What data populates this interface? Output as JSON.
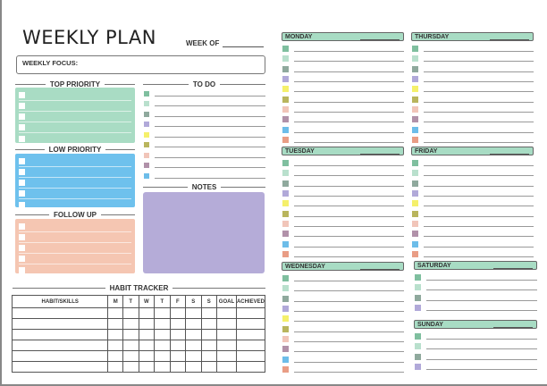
{
  "title": "WEEKLY PLAN",
  "week_of_label": "WEEK OF",
  "weekly_focus_label": "WEEKLY FOCUS:",
  "sections": {
    "top_priority": "TOP PRIORITY",
    "low_priority": "LOW PRIORITY",
    "follow_up": "FOLLOW UP",
    "to_do": "TO DO",
    "notes": "NOTES",
    "habit_tracker": "HABIT TRACKER"
  },
  "colors": {
    "top_priority": "#a9dcc4",
    "low_priority": "#6ec1ed",
    "follow_up": "#f5c6b2",
    "notes": "#b5acd8",
    "day_header": "#a8dcc4"
  },
  "square_colors": [
    "#7fbf9f",
    "#b9e0cd",
    "#8fa99d",
    "#b1a9d9",
    "#f5f06b",
    "#b9b55d",
    "#f1c5b9",
    "#b191a9",
    "#6dbde9",
    "#e99d85"
  ],
  "habit_table": {
    "headers": [
      "HABIT/SKILLS",
      "M",
      "T",
      "W",
      "T",
      "F",
      "S",
      "S",
      "GOAL",
      "ACHIEVED"
    ],
    "rows": 6
  },
  "days": [
    {
      "name": "MONDAY",
      "rows": 10
    },
    {
      "name": "TUESDAY",
      "rows": 10
    },
    {
      "name": "WEDNESDAY",
      "rows": 10
    },
    {
      "name": "THURSDAY",
      "rows": 10
    },
    {
      "name": "FRIDAY",
      "rows": 10
    },
    {
      "name": "SATURDAY",
      "rows": 4
    },
    {
      "name": "SUNDAY",
      "rows": 4
    }
  ]
}
